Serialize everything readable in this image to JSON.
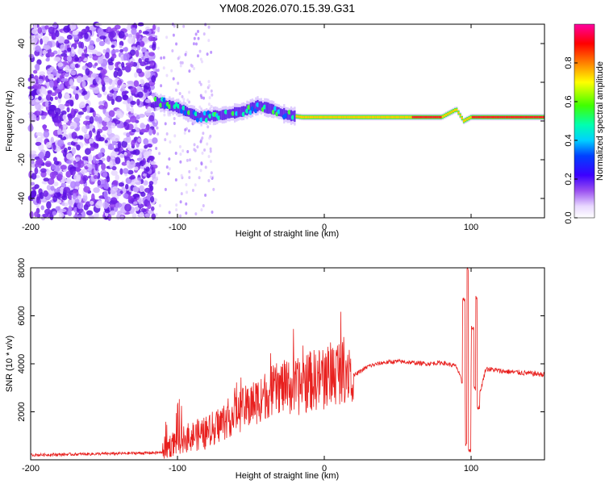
{
  "title": "YM08.2026.070.15.39.G31",
  "colors": {
    "snr_line": "#e8201e",
    "axis": "#000000"
  },
  "chart_data": [
    {
      "type": "heatmap",
      "name": "spectrogram",
      "xlabel": "Height of straight line (km)",
      "ylabel": "Frequency (Hz)",
      "xlim": [
        -200,
        150
      ],
      "ylim": [
        -50,
        50
      ],
      "xticks": [
        -200,
        -100,
        0,
        100
      ],
      "xtick_labels": [
        "-200",
        "-100",
        "0",
        "100"
      ],
      "yticks": [
        -40,
        -20,
        0,
        20,
        40
      ],
      "ytick_labels": [
        "-40",
        "-20",
        "0",
        "20",
        "40"
      ],
      "colorbar": {
        "label": "Normalized spectral amplitude",
        "range": [
          0,
          1
        ],
        "ticks": [
          0.0,
          0.2,
          0.4,
          0.6,
          0.8
        ],
        "tick_labels": [
          "0.0",
          "0.2",
          "0.4",
          "0.6",
          "0.8"
        ]
      },
      "ridge": [
        {
          "x": -115,
          "f": 10
        },
        {
          "x": -100,
          "f": 7
        },
        {
          "x": -85,
          "f": 2
        },
        {
          "x": -70,
          "f": 3
        },
        {
          "x": -55,
          "f": 5
        },
        {
          "x": -45,
          "f": 8
        },
        {
          "x": -35,
          "f": 6
        },
        {
          "x": -25,
          "f": 3
        },
        {
          "x": -15,
          "f": 2
        },
        {
          "x": 0,
          "f": 2
        },
        {
          "x": 50,
          "f": 2
        },
        {
          "x": 80,
          "f": 2
        },
        {
          "x": 90,
          "f": 6
        },
        {
          "x": 95,
          "f": 0
        },
        {
          "x": 100,
          "f": 2
        },
        {
          "x": 150,
          "f": 2
        }
      ],
      "noise_region": [
        -200,
        -115
      ],
      "sparse_region": [
        -115,
        -75
      ]
    },
    {
      "type": "line",
      "name": "snr",
      "xlabel": "Height of straight line (km)",
      "ylabel": "SNR (10 * v/v)",
      "xlim": [
        -200,
        150
      ],
      "ylim": [
        0,
        8000
      ],
      "xticks": [
        -200,
        -100,
        0,
        100
      ],
      "xtick_labels": [
        "-200",
        "-100",
        "0",
        "100"
      ],
      "yticks": [
        2000,
        4000,
        6000,
        8000
      ],
      "ytick_labels": [
        "2000",
        "4000",
        "6000",
        "8000"
      ],
      "series": [
        {
          "name": "SNR",
          "x": [
            -200,
            -150,
            -110,
            -100,
            -90,
            -80,
            -70,
            -60,
            -50,
            -40,
            -30,
            -20,
            -10,
            0,
            10,
            20,
            30,
            40,
            50,
            60,
            70,
            80,
            90,
            95,
            98,
            100,
            105,
            110,
            120,
            130,
            140,
            150
          ],
          "y": [
            200,
            250,
            300,
            600,
            800,
            900,
            1300,
            1700,
            2000,
            2400,
            2700,
            2600,
            2900,
            3000,
            3300,
            3500,
            3900,
            4050,
            4100,
            4050,
            4000,
            4050,
            3900,
            3000,
            2000,
            3500,
            2500,
            3800,
            3700,
            3650,
            3600,
            3550
          ]
        }
      ],
      "spikes": [
        {
          "x": 95,
          "y": 6700
        },
        {
          "x": 97,
          "y": 600
        },
        {
          "x": 98,
          "y": 8000
        },
        {
          "x": 99,
          "y": 400
        },
        {
          "x": 101,
          "y": 5500
        },
        {
          "x": 104,
          "y": 6800
        },
        {
          "x": 105,
          "y": 2200
        }
      ]
    }
  ]
}
